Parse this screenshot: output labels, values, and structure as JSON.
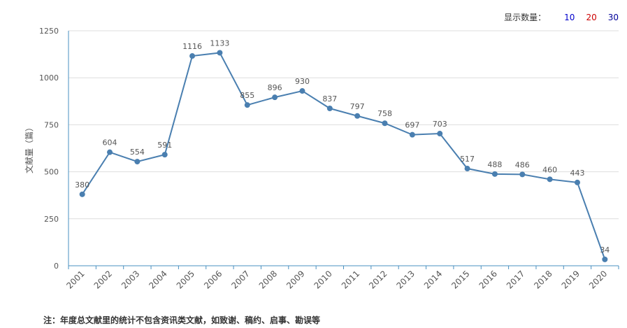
{
  "display_count": {
    "label": "显示数量：",
    "options": [
      {
        "label": "10",
        "color": "#0000cc"
      },
      {
        "label": "20",
        "color": "#cc0000"
      },
      {
        "label": "30",
        "color": "#000099"
      }
    ]
  },
  "footnote": "注：年度总文献里的统计不包含资讯类文献，如致谢、稿约、启事、勘误等",
  "chart_data": {
    "type": "line",
    "title": "",
    "xlabel": "",
    "ylabel": "文献量（篇）",
    "categories": [
      "2001",
      "2002",
      "2003",
      "2004",
      "2005",
      "2006",
      "2007",
      "2008",
      "2009",
      "2010",
      "2011",
      "2012",
      "2013",
      "2014",
      "2015",
      "2016",
      "2017",
      "2018",
      "2019",
      "2020"
    ],
    "series": [
      {
        "values": [
          380,
          604,
          554,
          591,
          1116,
          1133,
          855,
          896,
          930,
          837,
          797,
          758,
          697,
          703,
          517,
          488,
          486,
          460,
          443,
          34
        ]
      }
    ],
    "ylim": [
      0,
      1250
    ],
    "yticks": [
      0,
      250,
      500,
      750,
      1000,
      1250
    ],
    "grid": true,
    "line_color": "#4a7fb0"
  }
}
